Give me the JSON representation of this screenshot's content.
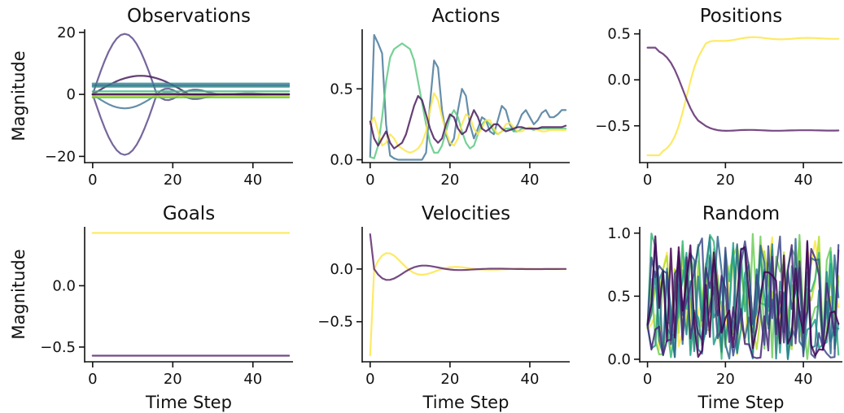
{
  "chart_data": [
    {
      "id": "observations",
      "type": "line",
      "title": "Observations",
      "ylabel": "Magnitude",
      "xlabel": "",
      "xlim": [
        -2,
        50
      ],
      "ylim": [
        -22,
        21
      ],
      "xticks": [
        0,
        20,
        40
      ],
      "yticks": [
        -20,
        0,
        20
      ],
      "yticklabels": [
        "−20",
        "0",
        "20"
      ],
      "series": [
        {
          "color": "#5e4b8b",
          "kind": "osc",
          "base": 0,
          "amp": 19.5,
          "peak": 8,
          "sign": 1
        },
        {
          "color": "#5e4b8b",
          "kind": "osc",
          "base": 0,
          "amp": 19.5,
          "peak": 8,
          "sign": -1
        },
        {
          "color": "#4a7a9b",
          "kind": "osc",
          "base": 0,
          "amp": 4.5,
          "peak": 8,
          "sign": -1
        },
        {
          "color": "#4a1d5e",
          "kind": "osc",
          "base": 0,
          "amp": 6,
          "peak": 12,
          "sign": 1
        },
        {
          "color": "#3a8f8f",
          "kind": "flat",
          "value": 3.5
        },
        {
          "color": "#2f8a8a",
          "kind": "flat",
          "value": 2.5
        },
        {
          "color": "#2d6a8e",
          "kind": "flat",
          "value": 3.0
        },
        {
          "color": "#3fb48f",
          "kind": "flat",
          "value": 1.0
        },
        {
          "color": "#7ad151",
          "kind": "flat",
          "value": 0.2
        },
        {
          "color": "#cde11d",
          "kind": "flat",
          "value": -0.5
        },
        {
          "color": "#5ec962",
          "kind": "flat",
          "value": -1.0
        },
        {
          "color": "#440154",
          "kind": "flat",
          "value": 0.0
        }
      ]
    },
    {
      "id": "actions",
      "type": "line",
      "title": "Actions",
      "ylabel": "",
      "xlabel": "",
      "xlim": [
        -2,
        50
      ],
      "ylim": [
        -0.02,
        0.92
      ],
      "xticks": [
        0,
        20,
        40
      ],
      "yticks": [
        0.0,
        0.5
      ],
      "yticklabels": [
        "0.0",
        "0.5"
      ],
      "series": [
        {
          "color": "#4a7a9b",
          "kind": "pts",
          "y": [
            0.02,
            0.88,
            0.82,
            0.75,
            0.25,
            0.03,
            0.01,
            0.0,
            0.0,
            0.0,
            0.0,
            0.0,
            0.0,
            0.0,
            0.05,
            0.4,
            0.7,
            0.65,
            0.35,
            0.18,
            0.1,
            0.15,
            0.35,
            0.5,
            0.45,
            0.25,
            0.15,
            0.22,
            0.3,
            0.28,
            0.2,
            0.18,
            0.28,
            0.38,
            0.35,
            0.25,
            0.2,
            0.25,
            0.32,
            0.35,
            0.3,
            0.25,
            0.28,
            0.33,
            0.35,
            0.3,
            0.3,
            0.32,
            0.35,
            0.35
          ]
        },
        {
          "color": "#5ec982",
          "kind": "pts",
          "y": [
            0.02,
            0.01,
            0.1,
            0.3,
            0.55,
            0.72,
            0.78,
            0.8,
            0.82,
            0.8,
            0.78,
            0.7,
            0.55,
            0.4,
            0.25,
            0.12,
            0.05,
            0.05,
            0.1,
            0.2,
            0.3,
            0.35,
            0.3,
            0.2,
            0.12,
            0.08,
            0.1,
            0.18,
            0.25,
            0.28,
            0.25,
            0.2,
            0.18,
            0.2,
            0.22,
            0.22,
            0.2,
            0.2,
            0.22,
            0.22,
            0.22,
            0.21,
            0.22,
            0.22,
            0.22,
            0.22,
            0.22,
            0.22,
            0.22,
            0.22
          ]
        },
        {
          "color": "#fde64a",
          "kind": "pts",
          "y": [
            0.25,
            0.3,
            0.2,
            0.1,
            0.12,
            0.18,
            0.15,
            0.1,
            0.08,
            0.06,
            0.05,
            0.06,
            0.08,
            0.12,
            0.2,
            0.35,
            0.47,
            0.42,
            0.3,
            0.2,
            0.12,
            0.1,
            0.15,
            0.25,
            0.32,
            0.3,
            0.22,
            0.18,
            0.22,
            0.28,
            0.28,
            0.22,
            0.18,
            0.2,
            0.25,
            0.26,
            0.23,
            0.2,
            0.2,
            0.22,
            0.23,
            0.22,
            0.21,
            0.2,
            0.2,
            0.21,
            0.21,
            0.21,
            0.21,
            0.21
          ]
        },
        {
          "color": "#4a1d5e",
          "kind": "pts",
          "y": [
            0.27,
            0.15,
            0.1,
            0.15,
            0.2,
            0.12,
            0.08,
            0.1,
            0.12,
            0.18,
            0.28,
            0.38,
            0.45,
            0.42,
            0.32,
            0.22,
            0.15,
            0.12,
            0.15,
            0.25,
            0.32,
            0.3,
            0.22,
            0.18,
            0.2,
            0.28,
            0.35,
            0.3,
            0.22,
            0.2,
            0.22,
            0.25,
            0.25,
            0.22,
            0.2,
            0.21,
            0.22,
            0.23,
            0.23,
            0.22,
            0.22,
            0.22,
            0.22,
            0.23,
            0.23,
            0.23,
            0.23,
            0.23,
            0.23,
            0.24
          ]
        }
      ]
    },
    {
      "id": "positions",
      "type": "line",
      "title": "Positions",
      "ylabel": "",
      "xlabel": "",
      "xlim": [
        -2,
        50
      ],
      "ylim": [
        -0.9,
        0.55
      ],
      "xticks": [
        0,
        20,
        40
      ],
      "yticks": [
        -0.5,
        0.0,
        0.5
      ],
      "yticklabels": [
        "−0.5",
        "0.0",
        "0.5"
      ],
      "series": [
        {
          "color": "#fde64a",
          "kind": "sig",
          "from": -0.82,
          "to": 0.45,
          "mid": 10,
          "k": 0.55,
          "hold": 4,
          "wob": 0.04
        },
        {
          "color": "#5e2a6e",
          "kind": "sig",
          "from": 0.35,
          "to": -0.55,
          "mid": 9,
          "k": 0.5,
          "hold": 3,
          "wob": 0.015
        }
      ]
    },
    {
      "id": "goals",
      "type": "line",
      "title": "Goals",
      "ylabel": "Magnitude",
      "xlabel": "Time Step",
      "xlim": [
        -2,
        50
      ],
      "ylim": [
        -0.62,
        0.48
      ],
      "xticks": [
        0,
        20,
        40
      ],
      "yticks": [
        -0.5,
        0.0
      ],
      "yticklabels": [
        "−0.5",
        "0.0"
      ],
      "series": [
        {
          "color": "#fde64a",
          "kind": "flat",
          "value": 0.43
        },
        {
          "color": "#5e2a6e",
          "kind": "flat",
          "value": -0.57
        }
      ]
    },
    {
      "id": "velocities",
      "type": "line",
      "title": "Velocities",
      "ylabel": "",
      "xlabel": "Time Step",
      "xlim": [
        -2,
        50
      ],
      "ylim": [
        -0.88,
        0.4
      ],
      "xticks": [
        0,
        20,
        40
      ],
      "yticks": [
        -0.5,
        0.0
      ],
      "yticklabels": [
        "−0.5",
        "0.0"
      ],
      "series": [
        {
          "color": "#fde64a",
          "kind": "vel",
          "start": -0.82,
          "amp": 0.15,
          "period": 17,
          "decay": 0.12
        },
        {
          "color": "#5e2a6e",
          "kind": "vel",
          "start": 0.33,
          "amp": -0.11,
          "period": 18,
          "decay": 0.13
        }
      ]
    },
    {
      "id": "random",
      "type": "line",
      "title": "Random",
      "ylabel": "",
      "xlabel": "Time Step",
      "xlim": [
        -2,
        50
      ],
      "ylim": [
        -0.02,
        1.05
      ],
      "xticks": [
        0,
        20,
        40
      ],
      "yticks": [
        0.0,
        0.5,
        1.0
      ],
      "yticklabels": [
        "0.0",
        "0.5",
        "1.0"
      ],
      "series": [
        {
          "color": "#fde64a",
          "kind": "rand",
          "seed": 11
        },
        {
          "color": "#b5de2b",
          "kind": "rand",
          "seed": 23
        },
        {
          "color": "#6ece58",
          "kind": "rand",
          "seed": 37
        },
        {
          "color": "#35b779",
          "kind": "rand",
          "seed": 41
        },
        {
          "color": "#1f9e89",
          "kind": "rand",
          "seed": 53
        },
        {
          "color": "#26828e",
          "kind": "rand",
          "seed": 67
        },
        {
          "color": "#31688e",
          "kind": "rand",
          "seed": 79
        },
        {
          "color": "#3e4989",
          "kind": "rand",
          "seed": 83
        },
        {
          "color": "#482878",
          "kind": "rand",
          "seed": 97
        },
        {
          "color": "#440154",
          "kind": "rand",
          "seed": 101
        }
      ]
    }
  ]
}
